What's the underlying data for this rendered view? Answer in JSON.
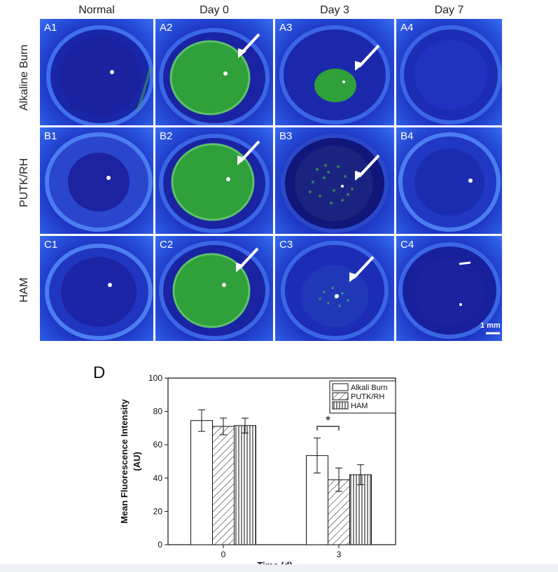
{
  "columns": [
    "Normal",
    "Day 0",
    "Day 3",
    "Day 7"
  ],
  "rows": [
    "Alkaline Burn",
    "PUTK/RH",
    "HAM"
  ],
  "panels": [
    [
      "A1",
      "A2",
      "A3",
      "A4"
    ],
    [
      "B1",
      "B2",
      "B3",
      "B4"
    ],
    [
      "C1",
      "C2",
      "C3",
      "C4"
    ]
  ],
  "scale_bar": "1 mm",
  "colors": {
    "fluorescence_green": "#2fa03a",
    "background_blue": "#1f2bb5",
    "arrow": "#ffffff"
  },
  "chart_data": {
    "type": "bar",
    "panel_label": "D",
    "categories": [
      "0",
      "3"
    ],
    "xlabel": "Time (d)",
    "ylabel": "Mean Fluorescence Intensity\n(AU)",
    "ylim": [
      0,
      100
    ],
    "yticks": [
      0,
      20,
      40,
      60,
      80,
      100
    ],
    "series": [
      {
        "name": "Alkali Burn",
        "values": [
          74.5,
          53.5
        ],
        "errors": [
          6.5,
          10.5
        ],
        "pattern": "solid"
      },
      {
        "name": "PUTK/RH",
        "values": [
          71,
          39
        ],
        "errors": [
          5,
          7
        ],
        "pattern": "diagonal"
      },
      {
        "name": "HAM",
        "values": [
          71.5,
          42
        ],
        "errors": [
          4.5,
          6
        ],
        "pattern": "vertical"
      }
    ],
    "annotations": [
      {
        "text": "*",
        "category": "3",
        "between": [
          "Alkali Burn",
          "PUTK/RH"
        ]
      }
    ],
    "legend_position": "top-right"
  }
}
